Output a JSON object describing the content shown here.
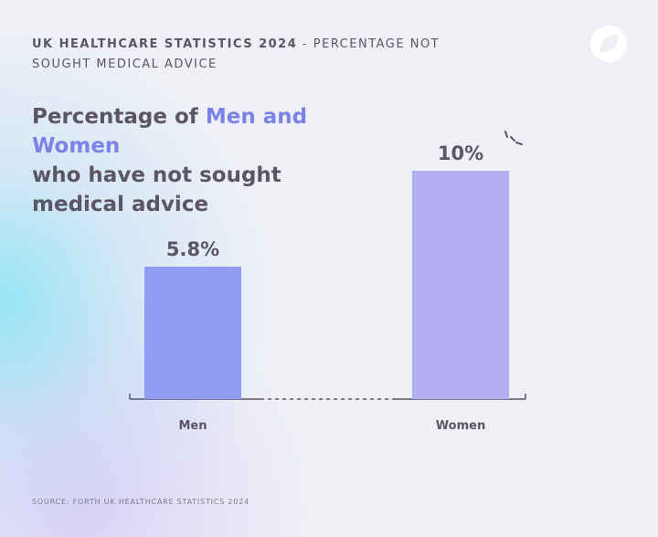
{
  "header": {
    "lead": "UK HEALTHCARE STATISTICS 2024",
    "rest": "- PERCENTAGE NOT SOUGHT MEDICAL ADVICE"
  },
  "chart_data": {
    "type": "bar",
    "title": {
      "lead": "Percentage of",
      "highlight": "Men and Women",
      "rest": "who have not sought medical advice"
    },
    "categories": [
      "Men",
      "Women"
    ],
    "values": [
      5.8,
      10
    ],
    "value_labels": [
      "5.8%",
      "10%"
    ],
    "colors": [
      "#8f9cf0",
      "#b4aef2"
    ]
  },
  "source": "SOURCE: FORTH UK HEALTHCARE STATISTICS 2024"
}
